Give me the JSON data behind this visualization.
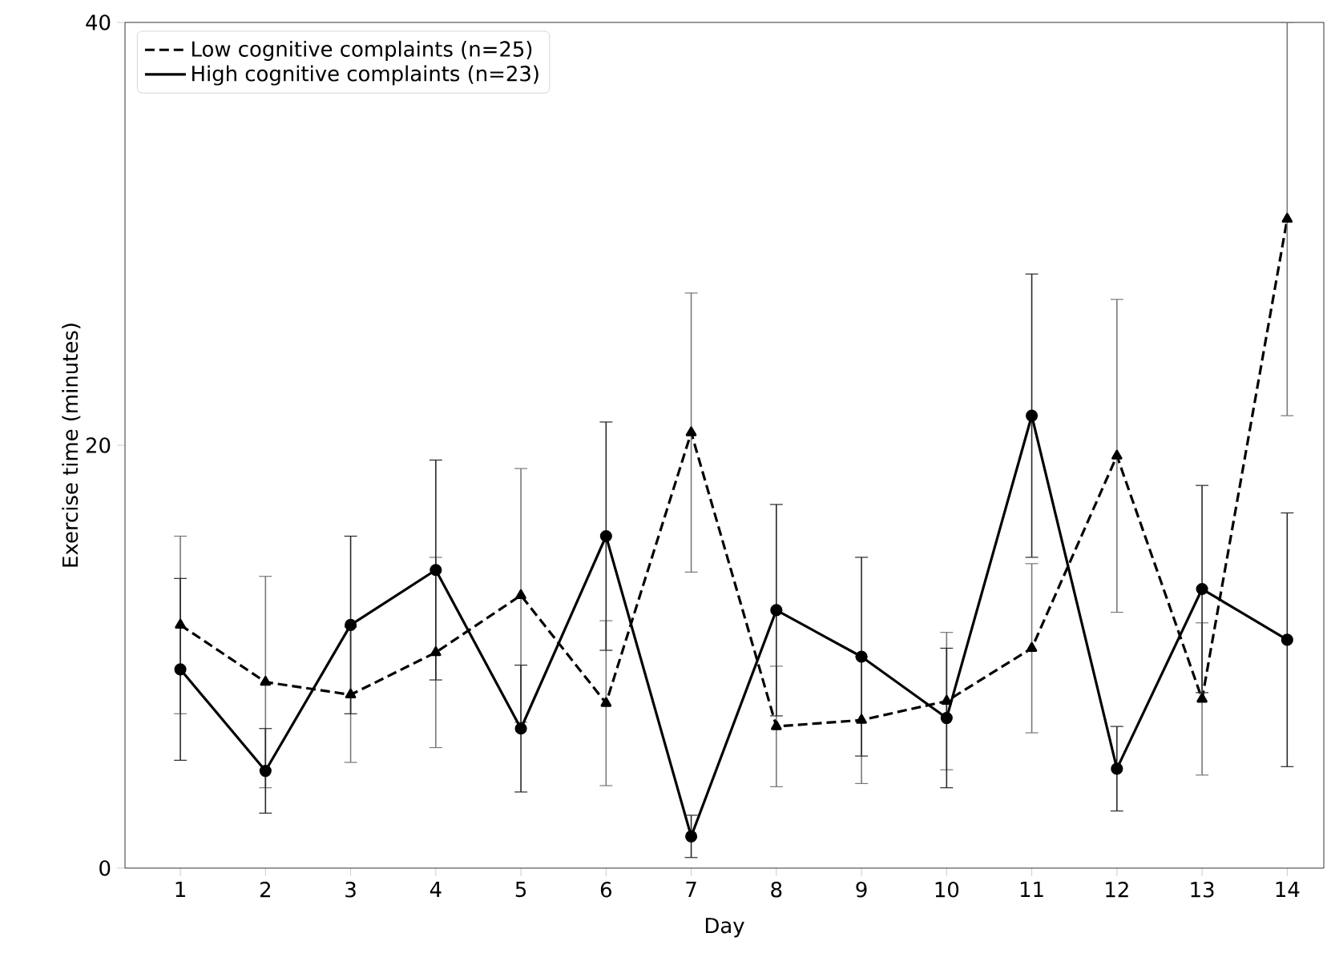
{
  "chart_data": {
    "type": "line",
    "xlabel": "Day",
    "ylabel": "Exercise time (minutes)",
    "x": [
      1,
      2,
      3,
      4,
      5,
      6,
      7,
      8,
      9,
      10,
      11,
      12,
      13,
      14
    ],
    "xlim": [
      0.35,
      14.43
    ],
    "ylim": [
      0,
      40
    ],
    "xticks": [
      1,
      2,
      3,
      4,
      5,
      6,
      7,
      8,
      9,
      10,
      11,
      12,
      13,
      14
    ],
    "yticks": [
      0,
      20,
      40
    ],
    "legend": "top left",
    "grid": false,
    "series": [
      {
        "name": "Low cognitive complaints (n=25)",
        "color": "#000000",
        "marker": "triangle",
        "line_style": "dashed",
        "values": [
          11.5,
          8.8,
          8.2,
          10.2,
          12.9,
          7.8,
          20.6,
          6.7,
          7.0,
          7.9,
          10.4,
          19.5,
          8.0,
          30.7
        ],
        "errors": [
          4.2,
          5.0,
          3.2,
          4.5,
          6.0,
          3.9,
          6.6,
          2.85,
          3.0,
          3.25,
          4.0,
          7.4,
          3.6,
          9.3
        ]
      },
      {
        "name": "High cognitive complaints (n=23)",
        "color": "#000000",
        "marker": "circle",
        "line_style": "solid",
        "values": [
          9.4,
          4.6,
          11.5,
          14.1,
          6.6,
          15.7,
          1.5,
          12.2,
          10.0,
          7.1,
          21.4,
          4.7,
          13.2,
          10.8
        ],
        "errors": [
          4.3,
          2.0,
          4.2,
          5.2,
          3.0,
          5.4,
          1.0,
          5.0,
          4.7,
          3.3,
          6.7,
          2.0,
          4.9,
          6.0
        ]
      }
    ]
  }
}
